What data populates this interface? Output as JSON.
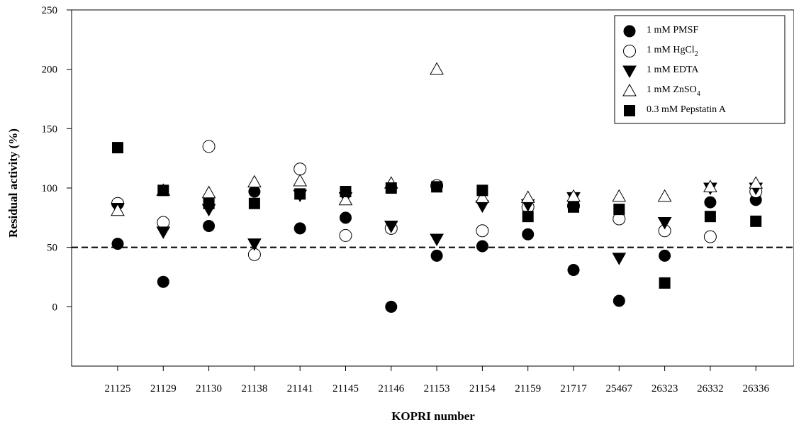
{
  "chart_data": {
    "type": "scatter",
    "title": "",
    "xlabel": "KOPRI number",
    "ylabel": "Residual activity (%)",
    "ylim": [
      -50,
      250
    ],
    "yticks": [
      0,
      50,
      100,
      150,
      200,
      250
    ],
    "categories": [
      "21125",
      "21129",
      "21130",
      "21138",
      "21141",
      "21145",
      "21146",
      "21153",
      "21154",
      "21159",
      "21717",
      "25467",
      "26323",
      "26332",
      "26336"
    ],
    "reference_line": {
      "y": 50,
      "style": "dashed"
    },
    "legend_position": "top-right",
    "series": [
      {
        "name": "1 mM PMSF",
        "marker": "filled-circle",
        "values": [
          53,
          21,
          68,
          97,
          66,
          75,
          0,
          43,
          51,
          61,
          31,
          5,
          43,
          88,
          90
        ]
      },
      {
        "name": "1 mM HgCl2",
        "name_main": "1 mM HgCl",
        "name_sub": "2",
        "marker": "open-circle",
        "values": [
          87,
          71,
          135,
          44,
          116,
          60,
          66,
          102,
          64,
          84,
          85,
          74,
          64,
          59,
          97
        ]
      },
      {
        "name": "1 mM EDTA",
        "marker": "filled-triangle-down",
        "values": [
          83,
          63,
          82,
          53,
          94,
          92,
          68,
          57,
          85,
          86,
          92,
          41,
          71,
          100,
          100
        ]
      },
      {
        "name": "1 mM ZnSO4",
        "name_main": "1 mM ZnSO",
        "name_sub": "4",
        "marker": "open-triangle-up",
        "values": [
          81,
          98,
          96,
          105,
          106,
          90,
          104,
          200,
          92,
          92,
          93,
          93,
          93,
          101,
          104
        ]
      },
      {
        "name": "0.3 mM Pepstatin A",
        "marker": "filled-square",
        "values": [
          134,
          98,
          87,
          87,
          95,
          97,
          100,
          101,
          98,
          76,
          84,
          82,
          20,
          76,
          72
        ]
      }
    ]
  }
}
